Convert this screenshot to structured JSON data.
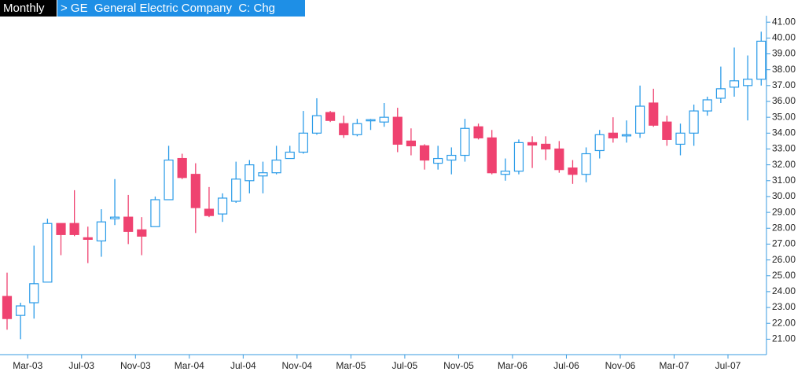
{
  "chart_data": {
    "type": "candlestick",
    "period": "Monthly",
    "title": "> GE  General Electric Company  C: Chg",
    "categories": [
      null,
      null,
      "Mar-03",
      null,
      null,
      null,
      "Jul-03",
      null,
      null,
      null,
      "Nov-03",
      null,
      null,
      null,
      "Mar-04",
      null,
      null,
      null,
      "Jul-04",
      null,
      null,
      null,
      "Nov-04",
      null,
      null,
      null,
      "Mar-05",
      null,
      null,
      null,
      "Jul-05",
      null,
      null,
      null,
      "Nov-05",
      null,
      null,
      null,
      "Mar-06",
      null,
      null,
      null,
      "Jul-06",
      null,
      null,
      null,
      "Nov-06",
      null,
      null,
      null,
      "Mar-07",
      null,
      null,
      null,
      "Jul-07",
      null,
      null
    ],
    "open": [
      23.7,
      22.5,
      23.3,
      24.6,
      28.3,
      28.3,
      27.4,
      27.2,
      28.6,
      28.7,
      27.9,
      28.1,
      29.8,
      32.4,
      31.4,
      29.2,
      28.9,
      29.7,
      31.0,
      31.3,
      31.5,
      32.4,
      32.8,
      34.0,
      35.3,
      34.6,
      33.9,
      34.8,
      34.7,
      35.0,
      33.5,
      33.2,
      32.1,
      32.3,
      32.6,
      34.4,
      33.7,
      31.4,
      31.6,
      33.4,
      33.3,
      33.0,
      31.8,
      31.4,
      32.9,
      34.0,
      33.85,
      34.0,
      35.9,
      34.7,
      33.3,
      34.0,
      35.4,
      36.2,
      36.9,
      37.0,
      37.4
    ],
    "high": [
      25.2,
      23.3,
      26.9,
      28.6,
      28.3,
      30.4,
      28.1,
      29.2,
      31.1,
      30.1,
      28.7,
      30.0,
      33.2,
      32.7,
      32.1,
      30.6,
      30.2,
      32.2,
      32.3,
      32.2,
      33.2,
      33.2,
      35.4,
      36.2,
      35.4,
      35.1,
      34.9,
      34.9,
      35.9,
      35.6,
      34.3,
      33.3,
      33.2,
      33.1,
      34.9,
      34.6,
      34.2,
      32.4,
      33.6,
      33.8,
      33.8,
      33.5,
      32.3,
      33.1,
      34.2,
      35.0,
      34.8,
      37.0,
      36.8,
      35.1,
      34.6,
      35.8,
      36.3,
      38.2,
      39.4,
      38.9,
      40.4
    ],
    "low": [
      21.6,
      21.0,
      22.3,
      24.6,
      26.3,
      27.5,
      25.8,
      26.2,
      28.2,
      27.0,
      26.3,
      28.1,
      29.8,
      31.1,
      27.7,
      28.7,
      28.4,
      29.6,
      30.2,
      30.2,
      31.4,
      32.4,
      32.7,
      33.9,
      34.7,
      33.7,
      33.8,
      34.2,
      34.4,
      32.8,
      32.6,
      31.7,
      31.7,
      31.4,
      32.2,
      33.6,
      31.4,
      31.0,
      31.4,
      31.8,
      32.3,
      31.5,
      30.8,
      30.9,
      32.4,
      33.4,
      33.4,
      33.7,
      34.4,
      33.2,
      32.6,
      33.2,
      35.1,
      35.9,
      36.3,
      34.8,
      37.0
    ],
    "close": [
      22.3,
      23.1,
      24.5,
      28.3,
      27.6,
      27.6,
      27.3,
      28.4,
      28.7,
      27.8,
      27.5,
      29.8,
      32.3,
      31.2,
      29.3,
      28.8,
      29.9,
      31.1,
      32.0,
      31.5,
      32.3,
      32.8,
      34.0,
      35.1,
      34.8,
      33.9,
      34.6,
      34.85,
      35.0,
      33.3,
      33.2,
      32.3,
      32.4,
      32.6,
      34.3,
      33.7,
      31.5,
      31.6,
      33.4,
      33.25,
      33.0,
      31.7,
      31.4,
      32.7,
      33.9,
      33.7,
      33.9,
      35.7,
      34.5,
      33.6,
      34.0,
      35.4,
      36.1,
      36.8,
      37.3,
      37.4,
      39.8
    ],
    "up_color": "#2a9be8",
    "down_color": "#ef4270",
    "ylim": [
      20.2,
      41.6
    ],
    "yticks": [
      {
        "value": 21,
        "label": "21.00"
      },
      {
        "value": 22,
        "label": "22.00"
      },
      {
        "value": 23,
        "label": "23.00"
      },
      {
        "value": 24,
        "label": "24.00"
      },
      {
        "value": 25,
        "label": "25.00"
      },
      {
        "value": 26,
        "label": "26.00"
      },
      {
        "value": 27,
        "label": "27.00"
      },
      {
        "value": 28,
        "label": "28.00"
      },
      {
        "value": 29,
        "label": "29.00"
      },
      {
        "value": 30,
        "label": "30.00"
      },
      {
        "value": 31,
        "label": "31.00"
      },
      {
        "value": 32,
        "label": "32.00"
      },
      {
        "value": 33,
        "label": "33.00"
      },
      {
        "value": 34,
        "label": "34.00"
      },
      {
        "value": 35,
        "label": "35.00"
      },
      {
        "value": 36,
        "label": "36.00"
      },
      {
        "value": 37,
        "label": "37.00"
      },
      {
        "value": 38,
        "label": "38.00"
      },
      {
        "value": 39,
        "label": "39.00"
      },
      {
        "value": 40,
        "label": "40.00"
      },
      {
        "value": 41,
        "label": "41.00"
      }
    ],
    "grid": false
  }
}
